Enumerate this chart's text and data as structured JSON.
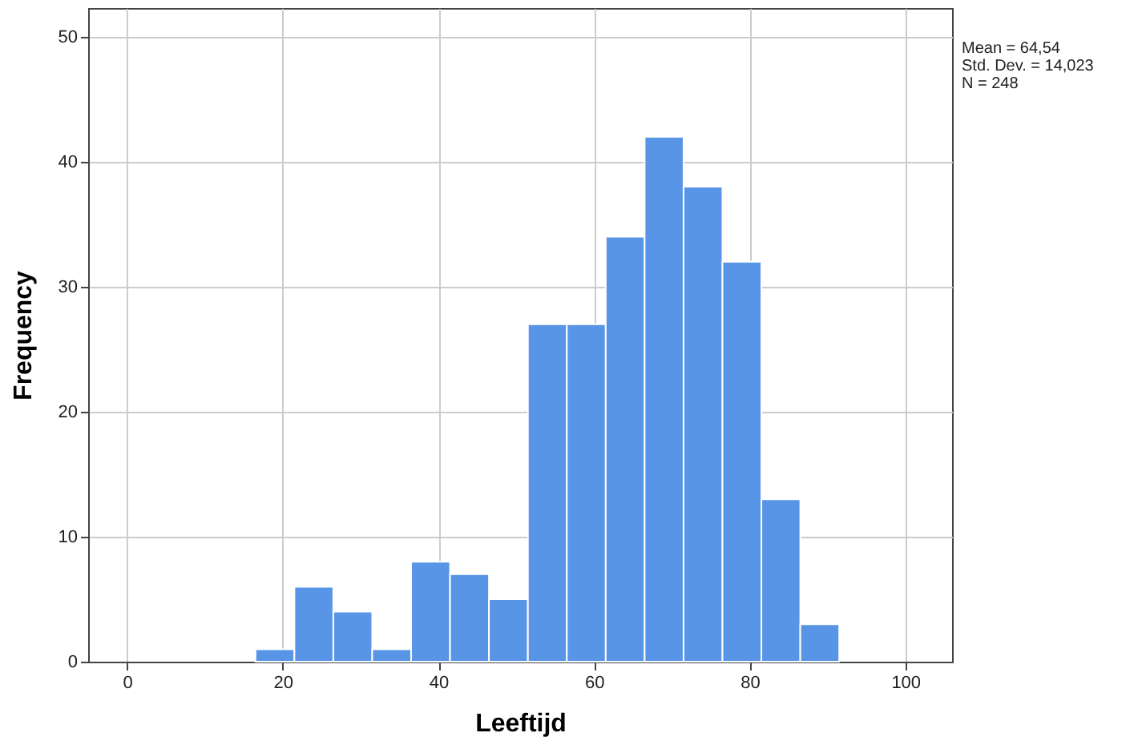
{
  "chart_data": {
    "type": "histogram",
    "xlabel": "Leeftijd",
    "ylabel": "Frequency",
    "bins": [
      16.5,
      21.5,
      26.5,
      31.5,
      36.5,
      41.5,
      46.5,
      51.5,
      56.5,
      61.5,
      66.5,
      71.5,
      76.5,
      81.5,
      86.5,
      91.5
    ],
    "values": [
      1,
      6,
      4,
      1,
      8,
      7,
      5,
      27,
      27,
      34,
      42,
      38,
      32,
      13,
      3
    ],
    "color": "#5895e6",
    "xlim": [
      -5,
      106
    ],
    "xticks": [
      0,
      20,
      40,
      60,
      80,
      100
    ],
    "ylim": [
      0,
      52.3
    ],
    "yticks": [
      0,
      10,
      20,
      30,
      40,
      50
    ],
    "grid": true,
    "annotations": [
      "Mean = 64,54",
      "Std. Dev. = 14,023",
      "N = 248"
    ]
  }
}
